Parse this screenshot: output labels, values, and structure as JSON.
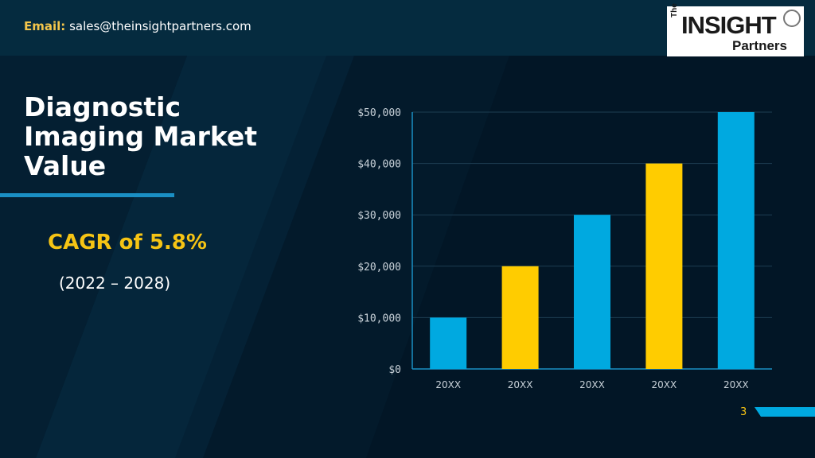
{
  "header": {
    "email_label": "Email:",
    "email_value": "sales@theinsightpartners.com"
  },
  "logo": {
    "the": "The",
    "insight": "INSIGHT",
    "partners": "Partners"
  },
  "title_line1": "Diagnostic",
  "title_line2": "Imaging Market",
  "title_line3": "Value",
  "cagr": "CAGR of 5.8%",
  "period": "(2022 – 2028)",
  "page_number": "3",
  "colors": {
    "bar_blue": "#00a9e0",
    "bar_yellow": "#ffcc00",
    "accent_blue": "#1a8fc4",
    "cagr_yellow": "#f6c414"
  },
  "chart_data": {
    "type": "bar",
    "categories": [
      "20XX",
      "20XX",
      "20XX",
      "20XX",
      "20XX"
    ],
    "values": [
      10000,
      20000,
      30000,
      40000,
      50000
    ],
    "bar_colors": [
      "#00a9e0",
      "#ffcc00",
      "#00a9e0",
      "#ffcc00",
      "#00a9e0"
    ],
    "ylim": [
      0,
      50000
    ],
    "yticks": [
      0,
      10000,
      20000,
      30000,
      40000,
      50000
    ],
    "ytick_labels": [
      "$0",
      "$10,000",
      "$20,000",
      "$30,000",
      "$40,000",
      "$50,000"
    ],
    "grid": true,
    "legend": "none"
  }
}
